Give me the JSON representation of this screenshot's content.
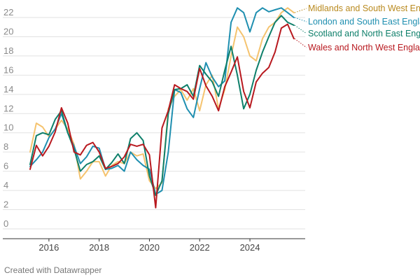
{
  "chart_data": {
    "type": "line",
    "title": "",
    "xlabel": "",
    "ylabel": "",
    "xlim": [
      2015.0,
      2026.2
    ],
    "ylim": [
      0,
      23
    ],
    "grid": true,
    "y_ticks": [
      0,
      2,
      4,
      6,
      8,
      10,
      12,
      14,
      16,
      18,
      20,
      22
    ],
    "x_ticks": [
      2016,
      2018,
      2020,
      2022,
      2024
    ],
    "x_tick_labels": [
      "2016",
      "2018",
      "2020",
      "2022",
      "2024"
    ],
    "legend_position": "top-right (direct labels)",
    "x": [
      2015.25,
      2015.5,
      2015.75,
      2016.0,
      2016.25,
      2016.5,
      2016.75,
      2017.0,
      2017.25,
      2017.5,
      2017.75,
      2018.0,
      2018.25,
      2018.5,
      2018.75,
      2019.0,
      2019.25,
      2019.5,
      2019.75,
      2020.0,
      2020.25,
      2020.5,
      2020.75,
      2021.0,
      2021.25,
      2021.5,
      2021.75,
      2022.0,
      2022.25,
      2022.5,
      2022.75,
      2023.0,
      2023.25,
      2023.5,
      2023.75,
      2024.0,
      2024.25,
      2024.5,
      2024.75,
      2025.0,
      2025.25,
      2025.5,
      2025.75
    ],
    "series": [
      {
        "name": "Midlands and South West England",
        "color": "#f5c36e",
        "label_color": "#b98a1f",
        "values": [
          8.0,
          11.0,
          10.6,
          9.6,
          10.4,
          11.3,
          10.4,
          8.8,
          5.2,
          6.0,
          7.0,
          7.0,
          5.5,
          6.6,
          7.0,
          6.8,
          8.0,
          7.6,
          7.8,
          5.0,
          4.2,
          4.8,
          12.5,
          13.8,
          14.5,
          13.4,
          14.6,
          12.3,
          15.0,
          16.0,
          12.5,
          14.5,
          18.0,
          21.0,
          20.0,
          18.0,
          17.5,
          19.8,
          21.0,
          21.5,
          22.5,
          23.0,
          22.5
        ]
      },
      {
        "name": "London and South East England",
        "color": "#1f8fb0",
        "label_color": "#1f8fb0",
        "values": [
          6.5,
          7.2,
          8.0,
          9.5,
          10.4,
          12.0,
          10.0,
          8.6,
          6.8,
          7.5,
          8.6,
          8.4,
          6.2,
          6.3,
          6.6,
          6.0,
          8.0,
          7.2,
          6.6,
          6.2,
          3.6,
          4.0,
          8.0,
          14.5,
          14.2,
          12.5,
          11.6,
          14.6,
          17.3,
          15.8,
          14.8,
          15.4,
          21.5,
          23.0,
          22.5,
          20.5,
          22.5,
          23.0,
          22.6,
          22.8,
          23.0,
          22.5,
          22.0
        ]
      },
      {
        "name": "Scotland and North East England",
        "color": "#0e7f6a",
        "label_color": "#0e7f6a",
        "values": [
          6.7,
          9.7,
          10.0,
          9.8,
          11.4,
          12.3,
          10.0,
          8.3,
          6.0,
          6.7,
          7.0,
          7.6,
          6.2,
          6.9,
          7.8,
          6.8,
          9.4,
          10.0,
          9.2,
          5.5,
          3.5,
          5.0,
          12.0,
          14.5,
          14.6,
          15.0,
          13.8,
          17.0,
          16.1,
          15.3,
          13.8,
          16.5,
          19.0,
          16.0,
          12.5,
          14.0,
          16.5,
          18.4,
          20.0,
          21.5,
          22.2,
          21.5,
          21.2
        ]
      },
      {
        "name": "Wales and North West England",
        "color": "#b8191f",
        "label_color": "#b8191f",
        "values": [
          6.2,
          8.7,
          7.6,
          8.6,
          10.1,
          12.6,
          11.0,
          8.0,
          7.7,
          8.7,
          9.0,
          8.0,
          6.3,
          6.5,
          6.8,
          7.5,
          8.8,
          8.6,
          8.8,
          7.7,
          2.2,
          10.5,
          12.3,
          15.0,
          14.6,
          14.3,
          13.5,
          16.7,
          14.9,
          13.8,
          12.3,
          14.8,
          16.3,
          17.9,
          14.3,
          12.6,
          15.3,
          16.2,
          16.8,
          18.4,
          20.9,
          21.3,
          19.8
        ]
      }
    ]
  },
  "footer": {
    "credit": "Created with Datawrapper"
  }
}
